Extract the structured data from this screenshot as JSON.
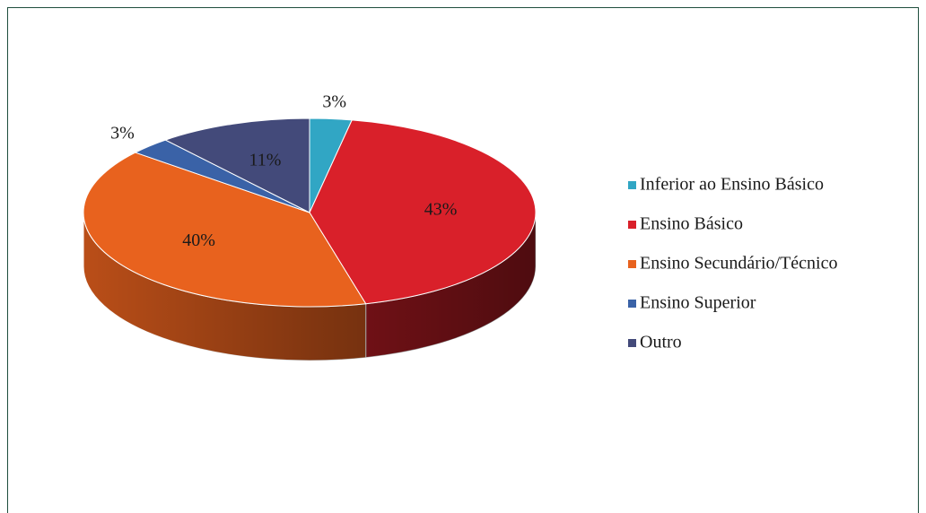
{
  "chart_data": {
    "type": "pie3d",
    "categories": [
      "Inferior ao Ensino Básico",
      "Ensino Básico",
      "Ensino Secundário/Técnico",
      "Ensino Superior",
      "Outro"
    ],
    "values": [
      3,
      43,
      40,
      3,
      11
    ],
    "value_labels": [
      "3%",
      "43%",
      "40%",
      "3%",
      "11%"
    ],
    "colors": [
      "#31a6c4",
      "#d9202a",
      "#e8621e",
      "#3a62a7",
      "#434a7a"
    ],
    "legend": "right"
  }
}
